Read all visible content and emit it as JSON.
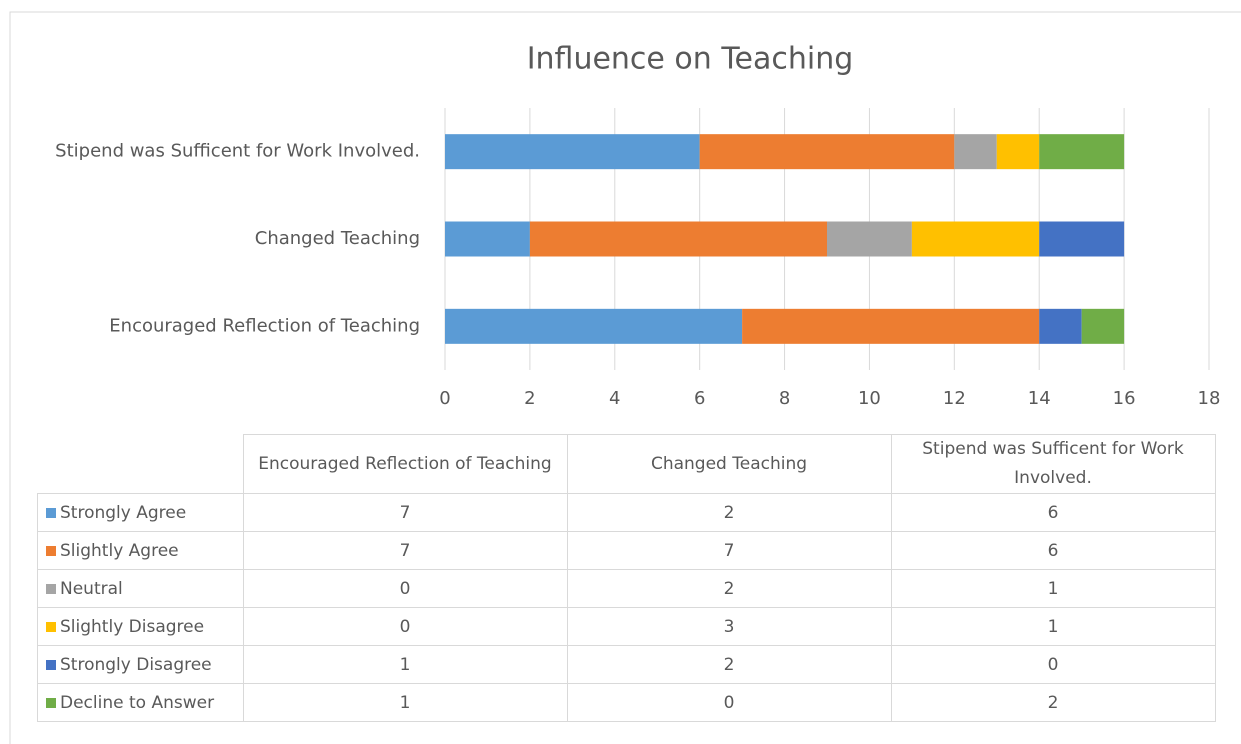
{
  "chart_data": {
    "type": "stacked_bar_horizontal",
    "title": "Influence on Teaching",
    "categories": [
      "Encouraged Reflection of Teaching",
      "Changed Teaching",
      "Stipend was Sufficent for Work Involved."
    ],
    "series": [
      {
        "name": "Strongly Agree",
        "color": "#5b9bd5",
        "values": [
          7,
          2,
          6
        ]
      },
      {
        "name": "Slightly Agree",
        "color": "#ed7d31",
        "values": [
          7,
          7,
          6
        ]
      },
      {
        "name": "Neutral",
        "color": "#a5a5a5",
        "values": [
          0,
          2,
          1
        ]
      },
      {
        "name": "Slightly Disagree",
        "color": "#ffc000",
        "values": [
          0,
          3,
          1
        ]
      },
      {
        "name": "Strongly Disagree",
        "color": "#4472c4",
        "values": [
          1,
          2,
          0
        ]
      },
      {
        "name": "Decline to Answer",
        "color": "#70ad47",
        "values": [
          1,
          0,
          2
        ]
      }
    ],
    "xlim": [
      0,
      18
    ],
    "xticks": [
      0,
      2,
      4,
      6,
      8,
      10,
      12,
      14,
      16,
      18
    ],
    "grid": true,
    "data_table": true
  }
}
